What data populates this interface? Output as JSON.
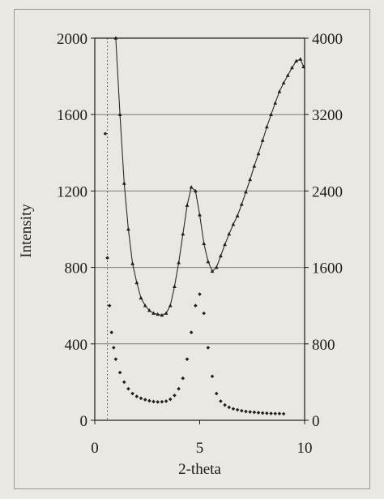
{
  "chart_data": {
    "type": "scatter",
    "title": "",
    "xlabel": "2-theta",
    "ylabel": "Intensity",
    "y2label": "",
    "xlim": [
      0,
      10
    ],
    "ylim": [
      0,
      2000
    ],
    "y2lim": [
      0,
      4000
    ],
    "x_ticks": [
      "0",
      "5",
      "10"
    ],
    "y_ticks": [
      "0",
      "400",
      "800",
      "1200",
      "1600",
      "2000"
    ],
    "y2_ticks": [
      "0",
      "800",
      "1600",
      "2400",
      "3200",
      "4000"
    ],
    "grid": "horizontal",
    "legend": "none",
    "vline_x": 0.6,
    "series": [
      {
        "axis": "right",
        "marker": "triangle",
        "x": [
          1.0,
          1.2,
          1.4,
          1.6,
          1.8,
          2.0,
          2.2,
          2.4,
          2.6,
          2.8,
          3.0,
          3.2,
          3.4,
          3.6,
          3.8,
          4.0,
          4.2,
          4.4,
          4.6,
          4.8,
          5.0,
          5.2,
          5.4,
          5.6,
          5.8,
          6.0,
          6.2,
          6.4,
          6.6,
          6.8,
          7.0,
          7.2,
          7.4,
          7.6,
          7.8,
          8.0,
          8.2,
          8.4,
          8.6,
          8.8,
          9.0,
          9.2,
          9.4,
          9.6,
          9.8,
          9.95
        ],
        "values": [
          4000,
          3200,
          2480,
          2000,
          1640,
          1440,
          1280,
          1200,
          1150,
          1120,
          1110,
          1100,
          1120,
          1200,
          1400,
          1650,
          1950,
          2250,
          2440,
          2400,
          2150,
          1850,
          1660,
          1560,
          1600,
          1720,
          1840,
          1950,
          2050,
          2140,
          2260,
          2390,
          2520,
          2660,
          2790,
          2930,
          3070,
          3200,
          3320,
          3440,
          3530,
          3610,
          3690,
          3760,
          3780,
          3700
        ]
      },
      {
        "axis": "left",
        "marker": "diamond",
        "x": [
          0.5,
          0.6,
          0.7,
          0.8,
          0.9,
          1.0,
          1.2,
          1.4,
          1.6,
          1.8,
          2.0,
          2.2,
          2.4,
          2.6,
          2.8,
          3.0,
          3.2,
          3.4,
          3.6,
          3.8,
          4.0,
          4.2,
          4.4,
          4.6,
          4.8,
          5.0,
          5.2,
          5.4,
          5.6,
          5.8,
          6.0,
          6.2,
          6.4,
          6.6,
          6.8,
          7.0,
          7.2,
          7.4,
          7.6,
          7.8,
          8.0,
          8.2,
          8.4,
          8.6,
          8.8,
          9.0
        ],
        "values": [
          1500,
          850,
          600,
          460,
          380,
          320,
          250,
          200,
          165,
          140,
          125,
          115,
          108,
          102,
          98,
          96,
          97,
          100,
          110,
          130,
          165,
          220,
          320,
          460,
          600,
          660,
          560,
          380,
          230,
          140,
          100,
          80,
          68,
          60,
          55,
          50,
          46,
          44,
          42,
          40,
          38,
          37,
          36,
          35,
          35,
          34
        ]
      }
    ]
  }
}
